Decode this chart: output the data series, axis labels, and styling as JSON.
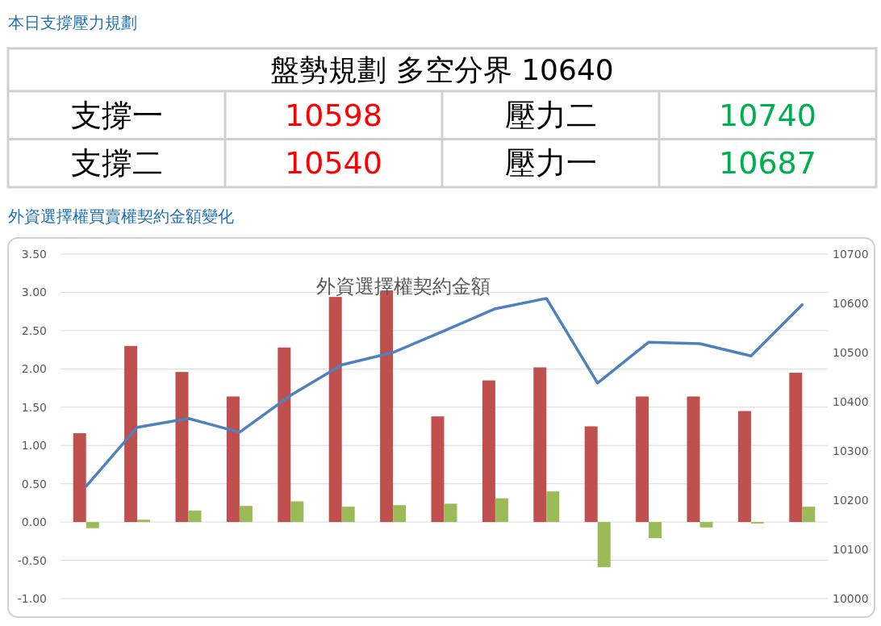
{
  "chart_data": [
    {
      "type": "other",
      "title": "本日支撐壓力規劃",
      "annotations": [
        "盤勢規劃 多空分界 10640",
        "支撐一",
        "10598",
        "壓力二",
        "10740",
        "支撐二",
        "10540",
        "壓力一",
        "10687"
      ]
    },
    {
      "type": "bar",
      "title": "外資選擇權買賣權契約金額變化",
      "subtitle": "外資選擇權契約金額",
      "categories": [
        null,
        null,
        null,
        null,
        null,
        null,
        null,
        null,
        null,
        null,
        null,
        null,
        null,
        null,
        null
      ],
      "series": [
        {
          "color": "#c0504d",
          "values": [
            1.16,
            2.3,
            1.96,
            1.64,
            2.28,
            2.94,
            3.02,
            1.38,
            1.85,
            2.02,
            1.25,
            1.64,
            1.64,
            1.45,
            1.95
          ]
        },
        {
          "color": "#9bbb59",
          "values": [
            -0.08,
            0.03,
            0.15,
            0.21,
            0.27,
            0.2,
            0.22,
            0.24,
            0.31,
            0.4,
            -0.59,
            -0.21,
            -0.07,
            -0.02,
            0.2
          ]
        },
        {
          "type": "line",
          "axis": "y2",
          "color": "#4f81bd",
          "values": [
            10228,
            10348,
            10366,
            10338,
            10413,
            10475,
            10500,
            10544,
            10589,
            10610,
            10438,
            10521,
            10518,
            10493,
            10597
          ]
        }
      ],
      "ylim": [
        -1,
        3.5
      ],
      "yticks": [
        {
          "value": -1,
          "label": "-1.00"
        },
        {
          "value": -0.5,
          "label": "-0.50"
        },
        {
          "value": 0,
          "label": "0.00"
        },
        {
          "value": 0.5,
          "label": "0.50"
        },
        {
          "value": 1,
          "label": "1.00"
        },
        {
          "value": 1.5,
          "label": "1.50"
        },
        {
          "value": 2,
          "label": "2.00"
        },
        {
          "value": 2.5,
          "label": "2.50"
        },
        {
          "value": 3,
          "label": "3.00"
        },
        {
          "value": 3.5,
          "label": "3.50"
        }
      ],
      "y2lim": [
        10000,
        10700
      ],
      "y2ticks": [
        10000,
        10100,
        10200,
        10300,
        10400,
        10500,
        10600,
        10700
      ],
      "grid": "y"
    }
  ]
}
